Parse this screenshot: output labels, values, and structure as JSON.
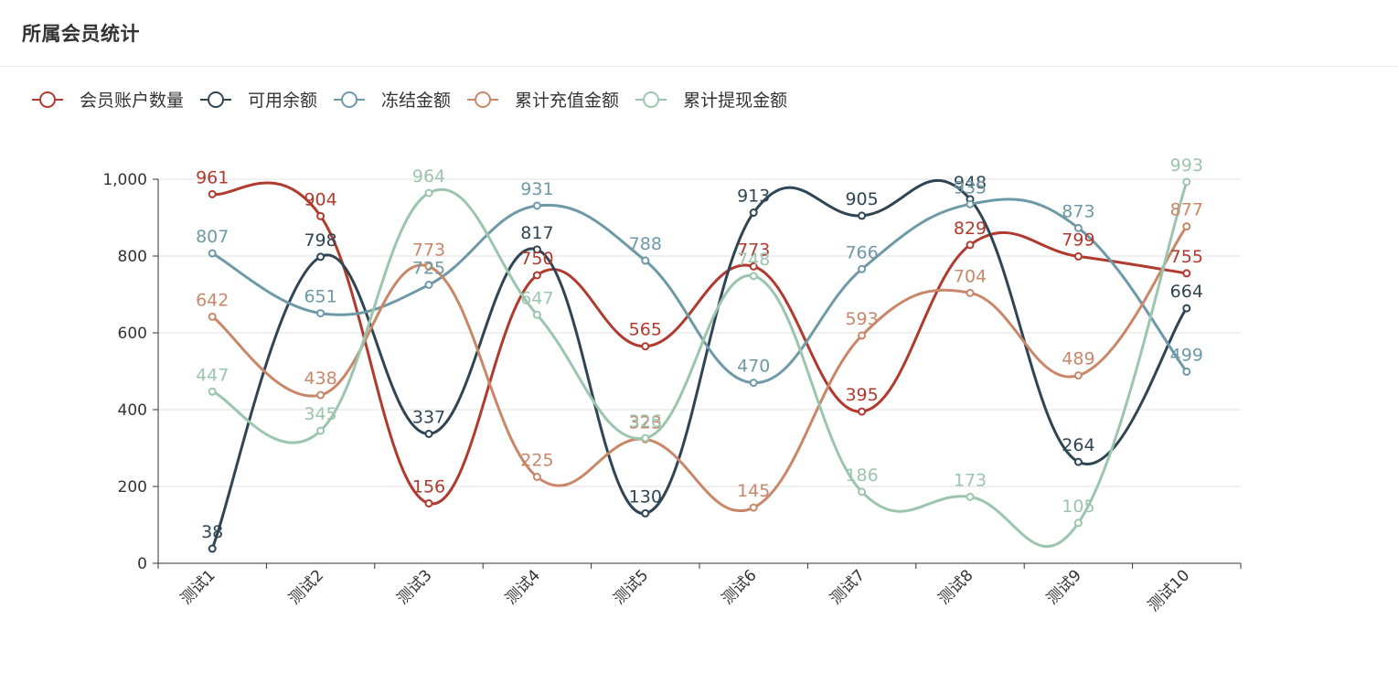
{
  "card": {
    "title": "所属会员统计"
  },
  "colors": {
    "grid": "#e0e0e0",
    "axis": "#333333",
    "axis_text": "#333333"
  },
  "chart_data": {
    "type": "line",
    "smooth": true,
    "title": "所属会员统计",
    "categories": [
      "测试1",
      "测试2",
      "测试3",
      "测试4",
      "测试5",
      "测试6",
      "测试7",
      "测试8",
      "测试9",
      "测试10"
    ],
    "ylim": [
      0,
      1000
    ],
    "yticks": [
      0,
      200,
      400,
      600,
      800,
      1000
    ],
    "ytick_labels": [
      "0",
      "200",
      "400",
      "600",
      "800",
      "1,000"
    ],
    "grid": true,
    "legend_position": "top-left",
    "series": [
      {
        "name": "会员账户数量",
        "color": "#b03a2e",
        "values": [
          961,
          904,
          156,
          750,
          565,
          773,
          395,
          829,
          799,
          755
        ]
      },
      {
        "name": "可用余额",
        "color": "#2f4554",
        "values": [
          38,
          798,
          337,
          817,
          130,
          913,
          905,
          948,
          264,
          664
        ]
      },
      {
        "name": "冻结金额",
        "color": "#6e99a7",
        "values": [
          807,
          651,
          725,
          931,
          788,
          470,
          766,
          935,
          873,
          499
        ]
      },
      {
        "name": "累计充值金额",
        "color": "#c9876a",
        "values": [
          642,
          438,
          773,
          225,
          323,
          145,
          593,
          704,
          489,
          877
        ]
      },
      {
        "name": "累计提现金额",
        "color": "#9cc5ae",
        "values": [
          447,
          345,
          964,
          647,
          326,
          748,
          186,
          173,
          105,
          993
        ]
      }
    ]
  }
}
